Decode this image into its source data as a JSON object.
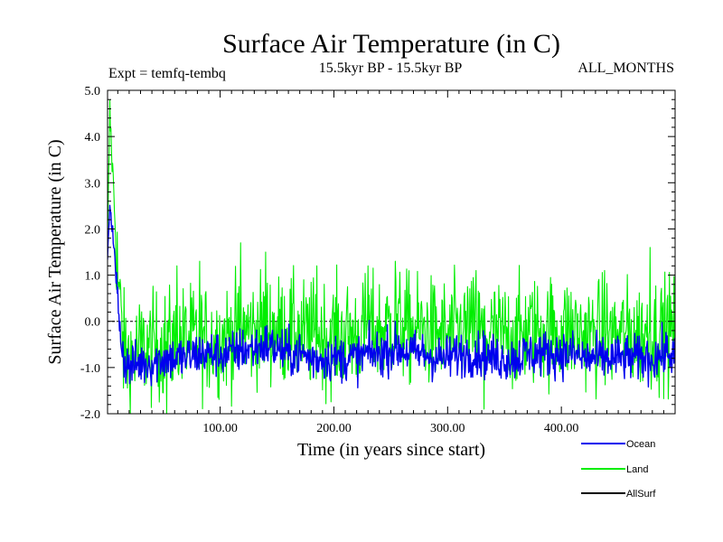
{
  "chart_data": {
    "type": "line",
    "title": "Surface Air Temperature (in C)",
    "subtitle_left": "Expt = temfq-tembq",
    "subtitle_center": "15.5kyr BP - 15.5kyr BP",
    "subtitle_right": "ALL_MONTHS",
    "xlabel": "Time (in years since start)",
    "ylabel": "Surface Air Temperature (in C)",
    "xlim": [
      1,
      500
    ],
    "ylim": [
      -2.0,
      5.0
    ],
    "xticks": [
      100,
      200,
      300,
      400
    ],
    "xtick_labels": [
      "100.00",
      "200.00",
      "300.00",
      "400.00"
    ],
    "yticks": [
      -2.0,
      -1.0,
      0.0,
      1.0,
      2.0,
      3.0,
      4.0,
      5.0
    ],
    "ytick_labels": [
      "-2.0",
      "-1.0",
      "0.0",
      "1.0",
      "2.0",
      "3.0",
      "4.0",
      "5.0"
    ],
    "zero_line": true,
    "series": [
      {
        "name": "Land",
        "color": "#00ee00",
        "x": [
          1,
          3,
          6,
          10,
          15,
          20,
          30,
          40,
          50,
          60,
          70,
          80,
          90,
          100,
          110,
          120,
          130,
          140,
          150,
          160,
          170,
          180,
          190,
          200,
          210,
          220,
          230,
          240,
          250,
          260,
          270,
          280,
          290,
          300,
          310,
          320,
          330,
          340,
          350,
          360,
          370,
          380,
          390,
          400,
          410,
          420,
          430,
          440,
          450,
          460,
          470,
          480,
          490,
          500
        ],
        "values": [
          1.5,
          4.5,
          3.0,
          1.0,
          -0.6,
          -0.8,
          -0.6,
          -0.6,
          -0.5,
          -0.5,
          -0.4,
          -0.4,
          -0.4,
          -0.4,
          -0.3,
          -0.2,
          -0.2,
          -0.1,
          -0.2,
          -0.2,
          -0.3,
          -0.3,
          -0.3,
          -0.3,
          -0.3,
          -0.3,
          -0.2,
          -0.2,
          -0.1,
          -0.1,
          -0.2,
          -0.2,
          -0.3,
          -0.3,
          -0.2,
          -0.2,
          -0.3,
          -0.3,
          -0.3,
          -0.3,
          -0.2,
          -0.2,
          -0.2,
          -0.2,
          -0.2,
          -0.3,
          -0.3,
          -0.3,
          -0.3,
          -0.3,
          -0.3,
          -0.3,
          -0.2,
          -0.2
        ],
        "spread": 0.6,
        "spikes": [
          [
            62,
            1.2
          ],
          [
            82,
            1.3
          ],
          [
            118,
            1.7
          ],
          [
            140,
            1.5
          ],
          [
            185,
            1.2
          ],
          [
            230,
            1.2
          ],
          [
            254,
            1.3
          ],
          [
            325,
            1.1
          ],
          [
            438,
            1.1
          ],
          [
            478,
            1.6
          ],
          [
            53,
            -2.0
          ],
          [
            332,
            -1.9
          ]
        ]
      },
      {
        "name": "Ocean",
        "color": "#0000ee",
        "x": [
          1,
          3,
          6,
          10,
          15,
          20,
          30,
          40,
          50,
          60,
          70,
          80,
          90,
          100,
          110,
          120,
          130,
          140,
          150,
          160,
          170,
          180,
          190,
          200,
          210,
          220,
          230,
          240,
          250,
          260,
          270,
          280,
          290,
          300,
          310,
          320,
          330,
          340,
          350,
          360,
          370,
          380,
          390,
          400,
          410,
          420,
          430,
          440,
          450,
          460,
          470,
          480,
          490,
          500
        ],
        "values": [
          1.2,
          2.6,
          1.8,
          0.4,
          -0.8,
          -1.0,
          -0.9,
          -0.9,
          -0.8,
          -0.8,
          -0.8,
          -0.7,
          -0.7,
          -0.7,
          -0.7,
          -0.6,
          -0.6,
          -0.5,
          -0.6,
          -0.7,
          -0.7,
          -0.8,
          -0.8,
          -0.8,
          -0.8,
          -0.8,
          -0.7,
          -0.7,
          -0.6,
          -0.6,
          -0.7,
          -0.7,
          -0.8,
          -0.8,
          -0.7,
          -0.7,
          -0.7,
          -0.8,
          -0.8,
          -0.8,
          -0.7,
          -0.7,
          -0.7,
          -0.7,
          -0.7,
          -0.8,
          -0.8,
          -0.8,
          -0.8,
          -0.8,
          -0.8,
          -0.8,
          -0.7,
          -0.7
        ],
        "spread": 0.25,
        "spikes": []
      },
      {
        "name": "AllSurf",
        "color": "#000000",
        "x": [],
        "values": [],
        "spread": 0,
        "spikes": []
      }
    ],
    "legend": [
      "Ocean",
      "Land",
      "AllSurf"
    ],
    "legend_position": "bottom-right"
  }
}
